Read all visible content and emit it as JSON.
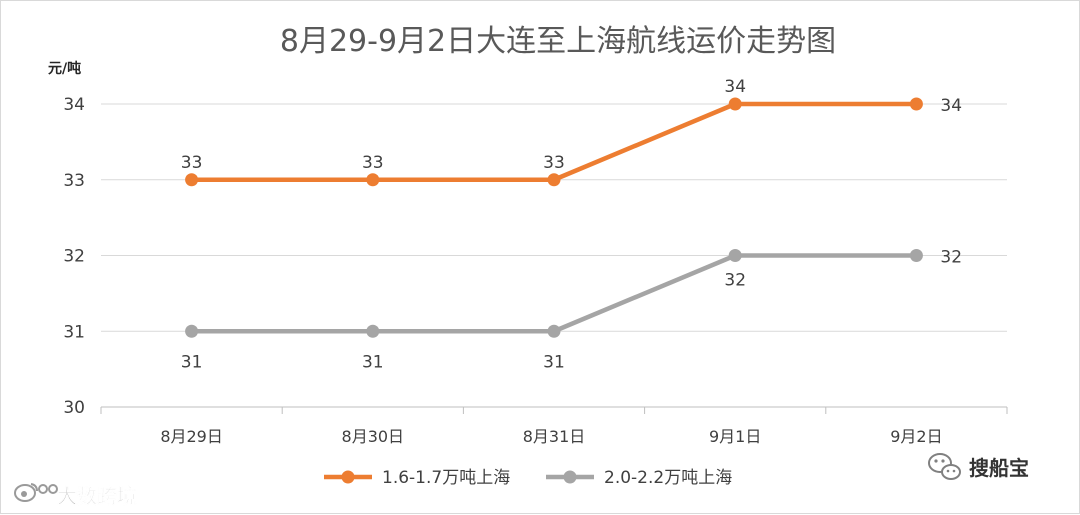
{
  "chart_data": {
    "type": "line",
    "title": "8月29-9月2日大连至上海航线运价走势图",
    "ylabel": "元/吨",
    "xlabel": "",
    "categories": [
      "8月29日",
      "8月30日",
      "8月31日",
      "9月1日",
      "9月2日"
    ],
    "ylim": [
      30,
      34
    ],
    "yticks": [
      "30",
      "31",
      "32",
      "33",
      "34"
    ],
    "grid": true,
    "legend": "bottom",
    "series": [
      {
        "name": "1.6-1.7万吨上海",
        "color": "#ed7d31",
        "values": [
          33,
          33,
          33,
          34,
          34
        ]
      },
      {
        "name": "2.0-2.2万吨上海",
        "color": "#a5a5a5",
        "values": [
          31,
          31,
          31,
          32,
          32
        ]
      }
    ]
  },
  "watermarks": {
    "left": "大数跨境",
    "right": "搜船宝",
    "icon_left": "weibo-logo-icon",
    "icon_right": "wechat-logo-icon"
  }
}
